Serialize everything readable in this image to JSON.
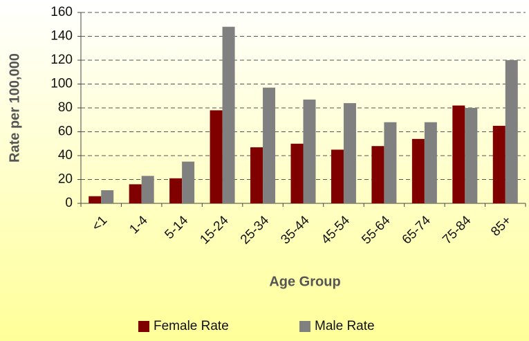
{
  "chart_data": {
    "type": "bar",
    "categories": [
      "<1",
      "1-4",
      "5-14",
      "15-24",
      "25-34",
      "35-44",
      "45-54",
      "55-64",
      "65-74",
      "75-84",
      "85+"
    ],
    "series": [
      {
        "name": "Female Rate",
        "color": "#800000",
        "values": [
          6,
          16,
          21,
          78,
          47,
          50,
          45,
          48,
          54,
          82,
          65
        ]
      },
      {
        "name": "Male Rate",
        "color": "#808080",
        "values": [
          11,
          23,
          35,
          148,
          97,
          87,
          84,
          68,
          68,
          80,
          120
        ]
      }
    ],
    "x_label": "Age Group",
    "y_label": "Rate per 100,000",
    "ylim": [
      0,
      160
    ],
    "yticks": [
      0,
      20,
      40,
      60,
      80,
      100,
      120,
      140,
      160
    ],
    "grid": true,
    "legend": "bottom"
  }
}
